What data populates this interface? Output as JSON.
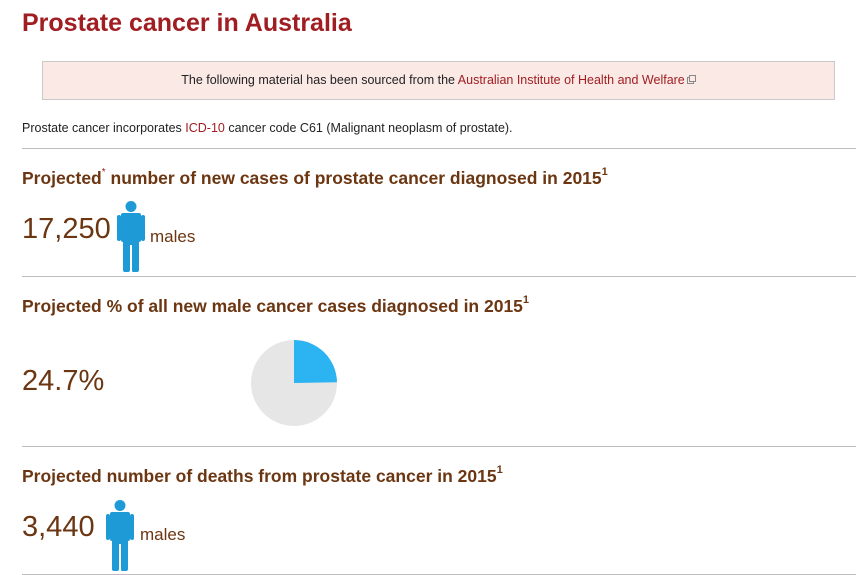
{
  "page": {
    "title": "Prostate cancer in Australia"
  },
  "source_notice": {
    "text_before": "The following material has been sourced from the ",
    "link_text": "Australian Institute of Health and Welfare"
  },
  "intro": {
    "text_before": "Prostate cancer incorporates ",
    "link_text": "ICD-10",
    "text_after": " cancer code C61 (Malignant neoplasm of prostate)."
  },
  "sections": [
    {
      "heading_before": "Projected",
      "heading_marker": "*",
      "heading_after": " number of new cases of prostate cancer diagnosed in 2015",
      "footnote": "1",
      "value": "17,250",
      "unit": "males",
      "icon": "male-person-icon"
    },
    {
      "heading": "Projected % of all new male cancer cases diagnosed in 2015",
      "footnote": "1",
      "value": "24.7%",
      "fraction": 0.247
    },
    {
      "heading": "Projected number of deaths from prostate cancer in 2015",
      "footnote": "1",
      "value": "3,440",
      "unit": "males",
      "icon": "male-person-icon"
    }
  ],
  "colors": {
    "title": "#a01d21",
    "heading": "#6b3611",
    "accent_blue": "#1e9bd7",
    "pie_highlight": "#2bb3f2",
    "pie_rest": "#e6e6e6",
    "notice_bg": "#fbe9e6"
  }
}
